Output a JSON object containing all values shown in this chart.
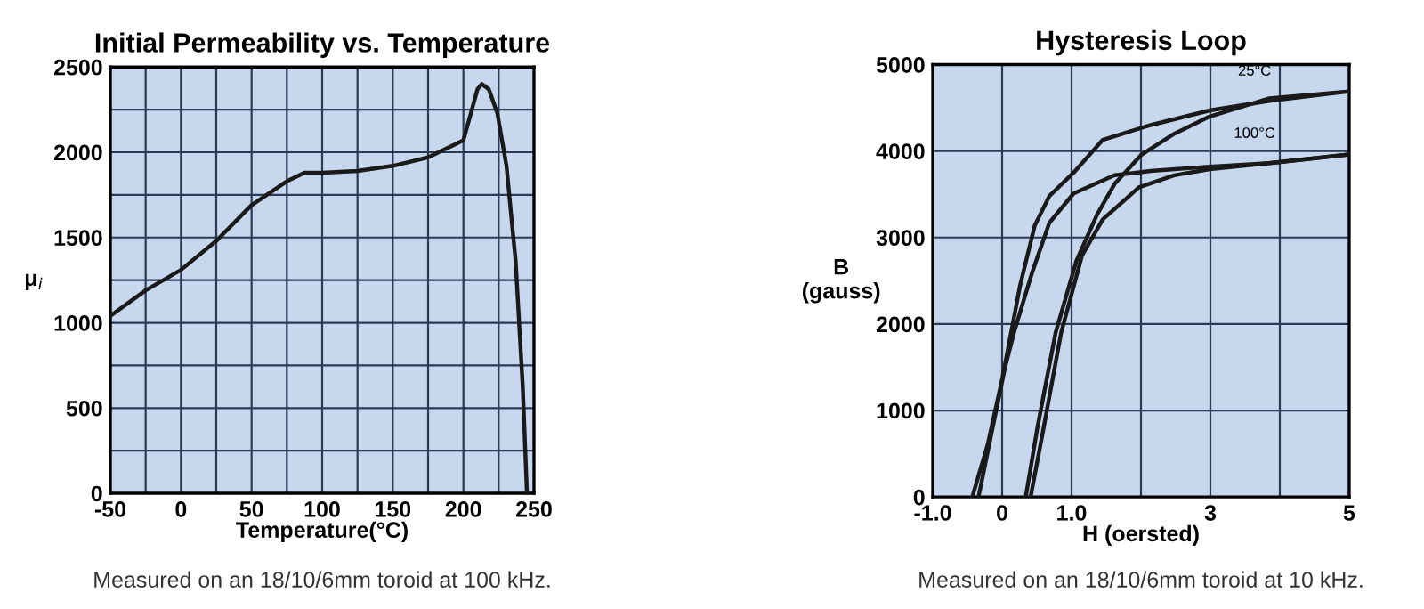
{
  "chart_data": [
    {
      "type": "line",
      "title": "Initial Permeability vs. Temperature",
      "xlabel": "Temperature(°C)",
      "ylabel": "μ$_{i}$",
      "series": [
        {
          "color": "#1a1a1a",
          "x": [
            -50,
            -25,
            0,
            25,
            50,
            75,
            87.5,
            100,
            125,
            150,
            175,
            200,
            204,
            210,
            213,
            218,
            224,
            230.5,
            237,
            242,
            245
          ],
          "values": [
            1040,
            1190,
            1310,
            1480,
            1690,
            1830,
            1880,
            1880,
            1890,
            1920,
            1970,
            2070,
            2190,
            2370,
            2400,
            2370,
            2230,
            1920,
            1360,
            630,
            0
          ]
        }
      ],
      "xlim": [
        -50,
        250
      ],
      "ylim": [
        0,
        2500
      ],
      "xticks": [
        -50,
        {
          "value": -25,
          "label": null
        },
        0,
        {
          "value": 25,
          "label": null
        },
        50,
        {
          "value": 75,
          "label": null
        },
        100,
        {
          "value": 125,
          "label": null
        },
        150,
        {
          "value": 175,
          "label": null
        },
        200,
        {
          "value": 225,
          "label": null
        },
        250
      ],
      "yticks": [
        0,
        {
          "value": 250,
          "label": null
        },
        500,
        {
          "value": 750,
          "label": null
        },
        1000,
        {
          "value": 1250,
          "label": null
        },
        1500,
        {
          "value": 1750,
          "label": null
        },
        2000,
        {
          "value": 2250,
          "label": null
        },
        2500
      ],
      "grid": true,
      "line_style": "solid",
      "marker": "none",
      "annotations": [
        "Measured on an 18/10/6mm toroid at 100 kHz."
      ]
    },
    {
      "type": "line",
      "title": "Hysteresis Loop",
      "xlabel": "H (oersted)",
      "ylabel": "B\n(gauss)",
      "series": [
        {
          "name": "25°C",
          "color": "#1a1a1a",
          "x": [
            5,
            3.85,
            2.99,
            2.14,
            1.45,
            1.03,
            0.68,
            0.47,
            0.26,
            0,
            -0.21,
            -0.43
          ],
          "values": [
            4690,
            4580,
            4470,
            4300,
            4130,
            3750,
            3480,
            3140,
            2450,
            1360,
            600,
            0
          ]
        },
        {
          "color": "#1a1a1a",
          "x": [
            0.34,
            0.51,
            0.77,
            1.07,
            1.37,
            1.62,
            2.01,
            2.48,
            2.99,
            3.85,
            5
          ],
          "values": [
            0,
            810,
            1900,
            2730,
            3270,
            3620,
            3960,
            4200,
            4400,
            4610,
            4690
          ]
        },
        {
          "name": "100°C",
          "color": "#1a1a1a",
          "x": [
            5,
            3.85,
            2.99,
            2.14,
            1.62,
            1.03,
            0.68,
            0.43,
            0.17,
            0.04,
            -0.17,
            -0.34
          ],
          "values": [
            3960,
            3860,
            3820,
            3770,
            3720,
            3510,
            3170,
            2590,
            1900,
            1490,
            670,
            0
          ]
        },
        {
          "color": "#1a1a1a",
          "x": [
            0.41,
            0.6,
            0.85,
            1.15,
            1.45,
            1.97,
            2.48,
            2.99,
            3.85,
            5
          ],
          "values": [
            0,
            810,
            1900,
            2790,
            3210,
            3580,
            3720,
            3790,
            3860,
            3960
          ]
        }
      ],
      "xlim": [
        -1,
        5
      ],
      "ylim": [
        0,
        5000
      ],
      "xticks": [
        {
          "value": -1,
          "label": "-1.0"
        },
        0,
        {
          "value": 1,
          "label": "1.0"
        },
        {
          "value": 2,
          "label": null
        },
        3,
        {
          "value": 4,
          "label": null
        },
        5
      ],
      "yticks": [
        0,
        1000,
        2000,
        3000,
        4000,
        5000
      ],
      "grid": true,
      "line_style": "solid",
      "marker": "none",
      "annotations": [
        "Measured on an 18/10/6mm toroid at 10 kHz."
      ]
    }
  ]
}
